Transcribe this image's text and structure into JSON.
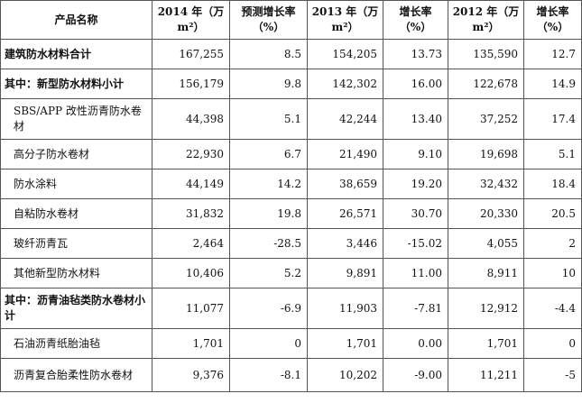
{
  "table": {
    "headers": [
      "产品名称",
      "2014 年（万 m²）",
      "预测增长率（%）",
      "2013 年（万 m²）",
      "增长率（%）",
      "2012 年（万 m²）",
      "增长率（%）"
    ],
    "rows": [
      {
        "name": "建筑防水材料合计",
        "v2014": "167,255",
        "g2014": "8.5",
        "v2013": "154,205",
        "g2013": "13.73",
        "v2012": "135,590",
        "g2012": "12.7"
      },
      {
        "name": "其中：新型防水材料小计",
        "v2014": "156,179",
        "g2014": "9.8",
        "v2013": "142,302",
        "g2013": "16.00",
        "v2012": "122,678",
        "g2012": "14.9"
      },
      {
        "name": "SBS/APP 改性沥青防水卷材",
        "v2014": "44,398",
        "g2014": "5.1",
        "v2013": "42,244",
        "g2013": "13.40",
        "v2012": "37,252",
        "g2012": "17.4"
      },
      {
        "name": "高分子防水卷材",
        "v2014": "22,930",
        "g2014": "6.7",
        "v2013": "21,490",
        "g2013": "9.10",
        "v2012": "19,698",
        "g2012": "5.1"
      },
      {
        "name": "防水涂料",
        "v2014": "44,149",
        "g2014": "14.2",
        "v2013": "38,659",
        "g2013": "19.20",
        "v2012": "32,432",
        "g2012": "18.4"
      },
      {
        "name": "自粘防水卷材",
        "v2014": "31,832",
        "g2014": "19.8",
        "v2013": "26,571",
        "g2013": "30.70",
        "v2012": "20,330",
        "g2012": "20.5"
      },
      {
        "name": "玻纤沥青瓦",
        "v2014": "2,464",
        "g2014": "-28.5",
        "v2013": "3,446",
        "g2013": "-15.02",
        "v2012": "4,055",
        "g2012": "2"
      },
      {
        "name": "其他新型防水材料",
        "v2014": "10,406",
        "g2014": "5.2",
        "v2013": "9,891",
        "g2013": "11.00",
        "v2012": "8,911",
        "g2012": "10"
      },
      {
        "name": "其中：沥青油毡类防水卷材小计",
        "v2014": "11,077",
        "g2014": "-6.9",
        "v2013": "11,903",
        "g2013": "-7.81",
        "v2012": "12,912",
        "g2012": "-4.4"
      },
      {
        "name": "石油沥青纸胎油毡",
        "v2014": "1,701",
        "g2014": "0",
        "v2013": "1,701",
        "g2013": "0.00",
        "v2012": "1,701",
        "g2012": "0"
      },
      {
        "name": "沥青复合胎柔性防水卷材",
        "v2014": "9,376",
        "g2014": "-8.1",
        "v2013": "10,202",
        "g2013": "-9.00",
        "v2012": "11,211",
        "g2012": "-5"
      }
    ]
  }
}
